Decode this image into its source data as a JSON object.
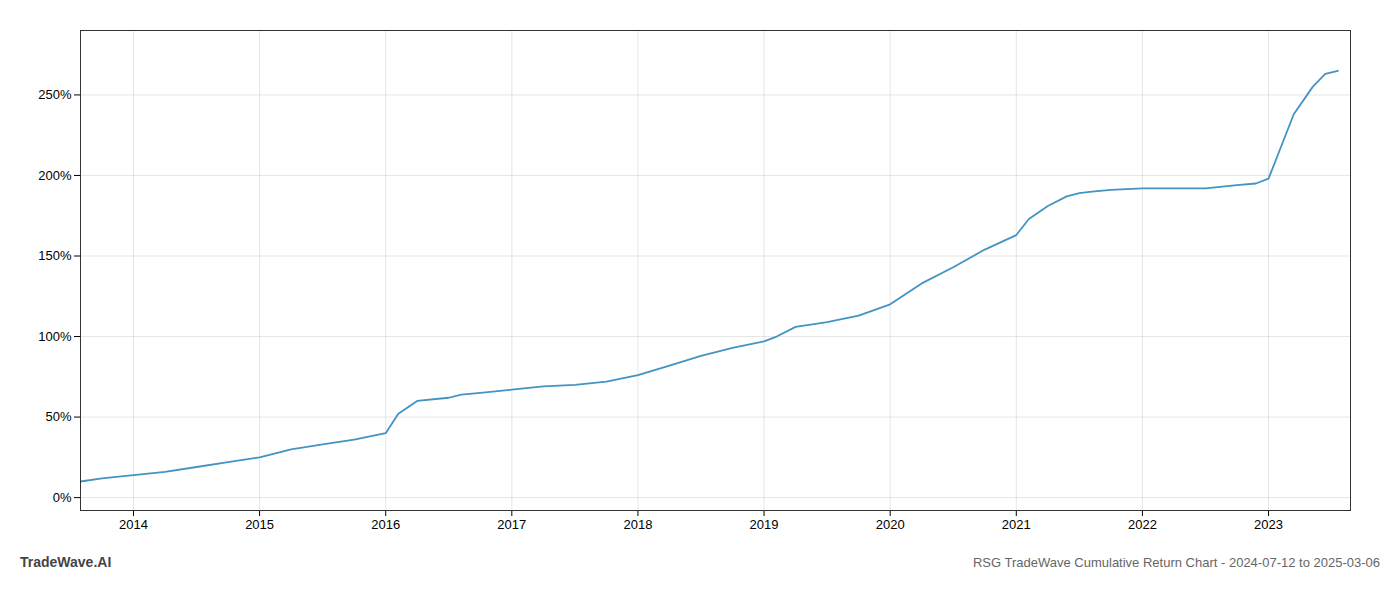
{
  "chart_data": {
    "type": "line",
    "title": "RSG TradeWave Cumulative Return Chart - 2024-07-12 to 2025-03-06",
    "annotations": [
      "TradeWave.AI"
    ],
    "color": "#4393c3",
    "grid": true,
    "x": [
      2013.58,
      2013.75,
      2014.0,
      2014.25,
      2014.5,
      2014.75,
      2015.0,
      2015.25,
      2015.5,
      2015.75,
      2016.0,
      2016.1,
      2016.25,
      2016.5,
      2016.6,
      2016.75,
      2017.0,
      2017.25,
      2017.5,
      2017.75,
      2018.0,
      2018.25,
      2018.5,
      2018.75,
      2019.0,
      2019.1,
      2019.25,
      2019.5,
      2019.75,
      2020.0,
      2020.25,
      2020.5,
      2020.75,
      2021.0,
      2021.1,
      2021.25,
      2021.4,
      2021.5,
      2021.6,
      2021.75,
      2022.0,
      2022.25,
      2022.5,
      2022.75,
      2022.9,
      2023.0,
      2023.1,
      2023.2,
      2023.35,
      2023.45,
      2023.55
    ],
    "values": [
      10,
      12,
      14,
      16,
      19,
      22,
      25,
      30,
      33,
      36,
      40,
      52,
      60,
      62,
      64,
      65,
      67,
      69,
      70,
      72,
      76,
      82,
      88,
      93,
      97,
      100,
      106,
      109,
      113,
      120,
      133,
      143,
      154,
      163,
      173,
      181,
      187,
      189,
      190,
      191,
      192,
      192,
      192,
      194,
      195,
      198,
      218,
      238,
      255,
      263,
      265
    ],
    "xlim": [
      2013.58,
      2023.65
    ],
    "xticks": [
      2014,
      2015,
      2016,
      2017,
      2018,
      2019,
      2020,
      2021,
      2022,
      2023
    ],
    "ylim": [
      -8,
      290
    ],
    "yticks": [
      {
        "value": 0,
        "label": "0%"
      },
      {
        "value": 50,
        "label": "50%"
      },
      {
        "value": 100,
        "label": "100%"
      },
      {
        "value": 150,
        "label": "150%"
      },
      {
        "value": 200,
        "label": "200%"
      },
      {
        "value": 250,
        "label": "250%"
      }
    ]
  }
}
